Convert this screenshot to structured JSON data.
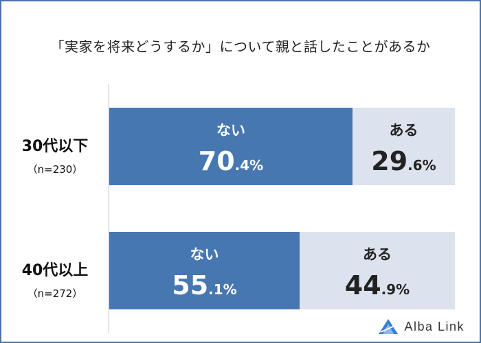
{
  "chart_data": {
    "type": "bar",
    "stacked": true,
    "orientation": "horizontal",
    "title": "「実家を将来どうするか」について親と話したことがあるか",
    "categories": [
      "30代以下",
      "40代以上"
    ],
    "sample_sizes": [
      "（n=230）",
      "（n=272）"
    ],
    "series": [
      {
        "name": "ない",
        "values": [
          70.4,
          55.1
        ],
        "color": "#4677b1"
      },
      {
        "name": "ある",
        "values": [
          29.6,
          44.9
        ],
        "color": "#dce3ee"
      }
    ],
    "value_labels": [
      [
        {
          "big": "70",
          "small": ".4%"
        },
        {
          "big": "29",
          "small": ".6%"
        }
      ],
      [
        {
          "big": "55",
          "small": ".1%"
        },
        {
          "big": "44",
          "small": ".9%"
        }
      ]
    ],
    "xlim": [
      0,
      100
    ]
  },
  "brand": {
    "name": "Alba Link",
    "logo_icon": "triangle-logo-icon",
    "color": "#3a7fd0"
  },
  "frame_color": "#4a73a8"
}
